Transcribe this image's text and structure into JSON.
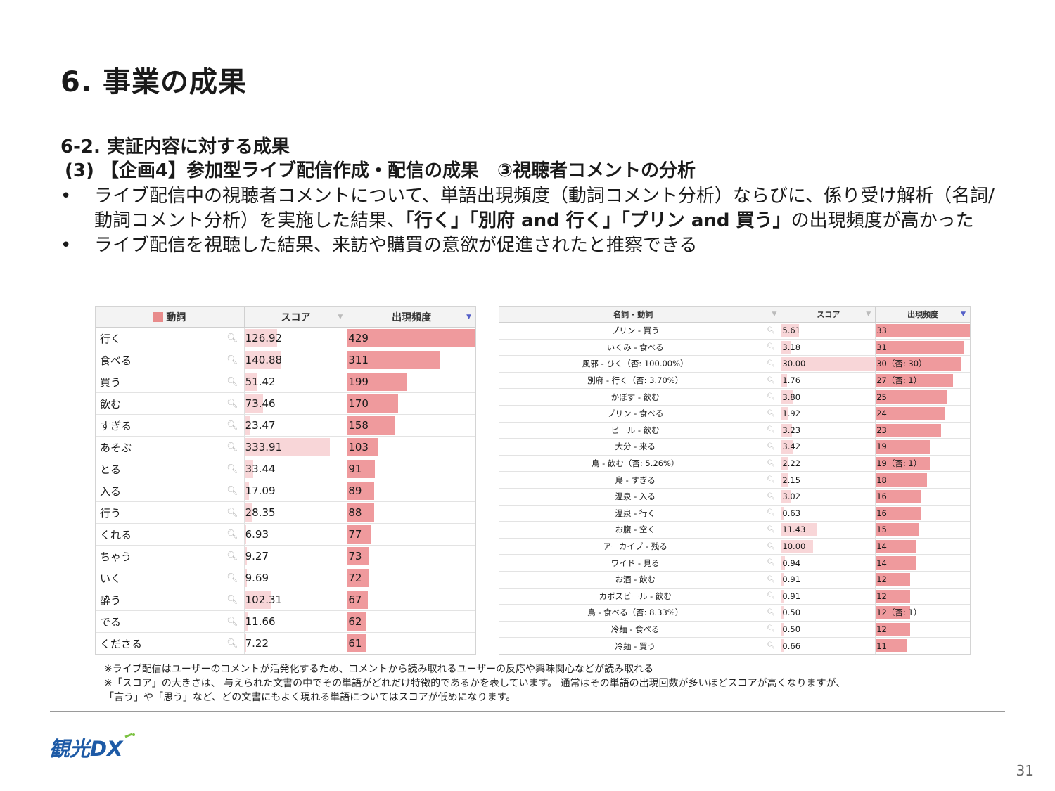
{
  "slide": {
    "title": "6. 事業の成果",
    "section": "6-2. 実証内容に対する成果",
    "subsection": "(3) 【企画4】参加型ライブ配信作成・配信の成果　③視聴者コメントの分析",
    "page_number": "31"
  },
  "bullets": {
    "b1_part1": "ライブ配信中の視聴者コメントについて、単語出現頻度（動詞コメント分析）ならびに、係り受け解析（名詞/動詞コメント分析）を実施した結果、",
    "b1_bold": "「行く」「別府 and 行く」「プリン and 買う」",
    "b1_part2": "の出現頻度が高かった",
    "b2": "ライブ配信を視聴した結果、来訪や購買の意欲が促進されたと推察できる"
  },
  "left_table": {
    "headers": {
      "word": "動詞",
      "score": "スコア",
      "freq": "出現頻度"
    },
    "rows": [
      {
        "word": "行く",
        "score": "126.92",
        "freq": "429",
        "score_val": 126.92,
        "freq_val": 429
      },
      {
        "word": "食べる",
        "score": "140.88",
        "freq": "311",
        "score_val": 140.88,
        "freq_val": 311
      },
      {
        "word": "買う",
        "score": "51.42",
        "freq": "199",
        "score_val": 51.42,
        "freq_val": 199
      },
      {
        "word": "飲む",
        "score": "73.46",
        "freq": "170",
        "score_val": 73.46,
        "freq_val": 170
      },
      {
        "word": "すぎる",
        "score": "23.47",
        "freq": "158",
        "score_val": 23.47,
        "freq_val": 158
      },
      {
        "word": "あそぶ",
        "score": "333.91",
        "freq": "103",
        "score_val": 333.91,
        "freq_val": 103
      },
      {
        "word": "とる",
        "score": "33.44",
        "freq": "91",
        "score_val": 33.44,
        "freq_val": 91
      },
      {
        "word": "入る",
        "score": "17.09",
        "freq": "89",
        "score_val": 17.09,
        "freq_val": 89
      },
      {
        "word": "行う",
        "score": "28.35",
        "freq": "88",
        "score_val": 28.35,
        "freq_val": 88
      },
      {
        "word": "くれる",
        "score": "6.93",
        "freq": "77",
        "score_val": 6.93,
        "freq_val": 77
      },
      {
        "word": "ちゃう",
        "score": "9.27",
        "freq": "73",
        "score_val": 9.27,
        "freq_val": 73
      },
      {
        "word": "いく",
        "score": "9.69",
        "freq": "72",
        "score_val": 9.69,
        "freq_val": 72
      },
      {
        "word": "酔う",
        "score": "102.31",
        "freq": "67",
        "score_val": 102.31,
        "freq_val": 67
      },
      {
        "word": "でる",
        "score": "11.66",
        "freq": "62",
        "score_val": 11.66,
        "freq_val": 62
      },
      {
        "word": "くださる",
        "score": "7.22",
        "freq": "61",
        "score_val": 7.22,
        "freq_val": 61
      }
    ]
  },
  "right_table": {
    "headers": {
      "pair": "名詞 - 動詞",
      "score": "スコア",
      "freq": "出現頻度"
    },
    "rows": [
      {
        "pair": "プリン - 買う",
        "score": "5.61",
        "freq": "33",
        "score_val": 5.61,
        "freq_val": 33
      },
      {
        "pair": "いくみ - 食べる",
        "score": "3.18",
        "freq": "31",
        "score_val": 3.18,
        "freq_val": 31
      },
      {
        "pair": "風邪 - ひく（否: 100.00%）",
        "score": "30.00",
        "freq": "30（否: 30）",
        "score_val": 30.0,
        "freq_val": 30
      },
      {
        "pair": "別府 - 行く（否: 3.70%）",
        "score": "1.76",
        "freq": "27（否: 1）",
        "score_val": 1.76,
        "freq_val": 27
      },
      {
        "pair": "かぼす - 飲む",
        "score": "3.80",
        "freq": "25",
        "score_val": 3.8,
        "freq_val": 25
      },
      {
        "pair": "プリン - 食べる",
        "score": "1.92",
        "freq": "24",
        "score_val": 1.92,
        "freq_val": 24
      },
      {
        "pair": "ビール - 飲む",
        "score": "3.23",
        "freq": "23",
        "score_val": 3.23,
        "freq_val": 23
      },
      {
        "pair": "大分 - 来る",
        "score": "3.42",
        "freq": "19",
        "score_val": 3.42,
        "freq_val": 19
      },
      {
        "pair": "鳥 - 飲む（否: 5.26%）",
        "score": "2.22",
        "freq": "19（否: 1）",
        "score_val": 2.22,
        "freq_val": 19
      },
      {
        "pair": "鳥 - すぎる",
        "score": "2.15",
        "freq": "18",
        "score_val": 2.15,
        "freq_val": 18
      },
      {
        "pair": "温泉 - 入る",
        "score": "3.02",
        "freq": "16",
        "score_val": 3.02,
        "freq_val": 16
      },
      {
        "pair": "温泉 - 行く",
        "score": "0.63",
        "freq": "16",
        "score_val": 0.63,
        "freq_val": 16
      },
      {
        "pair": "お腹 - 空く",
        "score": "11.43",
        "freq": "15",
        "score_val": 11.43,
        "freq_val": 15
      },
      {
        "pair": "アーカイブ - 残る",
        "score": "10.00",
        "freq": "14",
        "score_val": 10.0,
        "freq_val": 14
      },
      {
        "pair": "ワイド - 見る",
        "score": "0.94",
        "freq": "14",
        "score_val": 0.94,
        "freq_val": 14
      },
      {
        "pair": "お酒 - 飲む",
        "score": "0.91",
        "freq": "12",
        "score_val": 0.91,
        "freq_val": 12
      },
      {
        "pair": "カボスビール - 飲む",
        "score": "0.91",
        "freq": "12",
        "score_val": 0.91,
        "freq_val": 12
      },
      {
        "pair": "鳥 - 食べる（否: 8.33%）",
        "score": "0.50",
        "freq": "12（否: 1）",
        "score_val": 0.5,
        "freq_val": 12
      },
      {
        "pair": "冷麺 - 食べる",
        "score": "0.50",
        "freq": "12",
        "score_val": 0.5,
        "freq_val": 12
      },
      {
        "pair": "冷麺 - 買う",
        "score": "0.66",
        "freq": "11",
        "score_val": 0.66,
        "freq_val": 11
      }
    ]
  },
  "notes": {
    "n1": "※ライブ配信はユーザーのコメントが活発化するため、コメントから読み取れるユーザーの反応や興味関心などが読み取れる",
    "n2": "※「スコア」の大きさは、 与えられた文書の中でその単語がどれだけ特徴的であるかを表しています。 通常はその単語の出現回数が多いほどスコアが高くなりますが、",
    "n3": "「言う」や「思う」など、どの文書にもよく現れる単語についてはスコアが低めになります。"
  },
  "logo": {
    "text": "観光DX"
  },
  "colors": {
    "score_bar": "#f8d6d8",
    "freq_bar": "#ef9a9d",
    "logo_blue": "#1d5aa6",
    "logo_green": "#7cc242"
  }
}
